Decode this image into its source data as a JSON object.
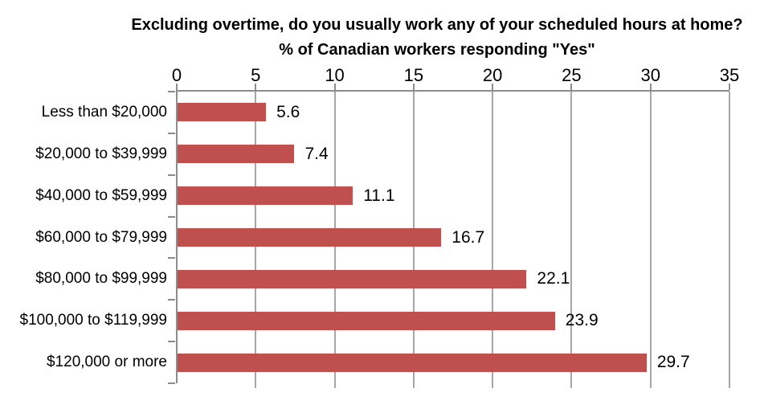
{
  "chart_data": {
    "type": "bar",
    "orientation": "horizontal",
    "title": "Excluding overtime, do you usually work any of your scheduled hours at home?",
    "subtitle": "% of Canadian workers responding \"Yes\"",
    "categories": [
      "Less than $20,000",
      "$20,000 to $39,999",
      "$40,000 to $59,999",
      "$60,000 to $79,999",
      "$80,000 to $99,999",
      "$100,000 to $119,999",
      "$120,000 or more"
    ],
    "values": [
      5.6,
      7.4,
      11.1,
      16.7,
      22.1,
      23.9,
      29.7
    ],
    "value_labels": [
      "5.6",
      "7.4",
      "11.1",
      "16.7",
      "22.1",
      "23.9",
      "29.7"
    ],
    "x_ticks": [
      0,
      5,
      10,
      15,
      20,
      25,
      30,
      35
    ],
    "xlim": [
      0,
      35
    ],
    "value_axis_position": "top",
    "grid": true,
    "legend": "none",
    "data_labels": "outside-end",
    "colors": {
      "bar": "#c0504d",
      "grid": "#a6a6a6",
      "axis": "#8c8c8c",
      "text": "#000000",
      "background": "#ffffff"
    }
  }
}
